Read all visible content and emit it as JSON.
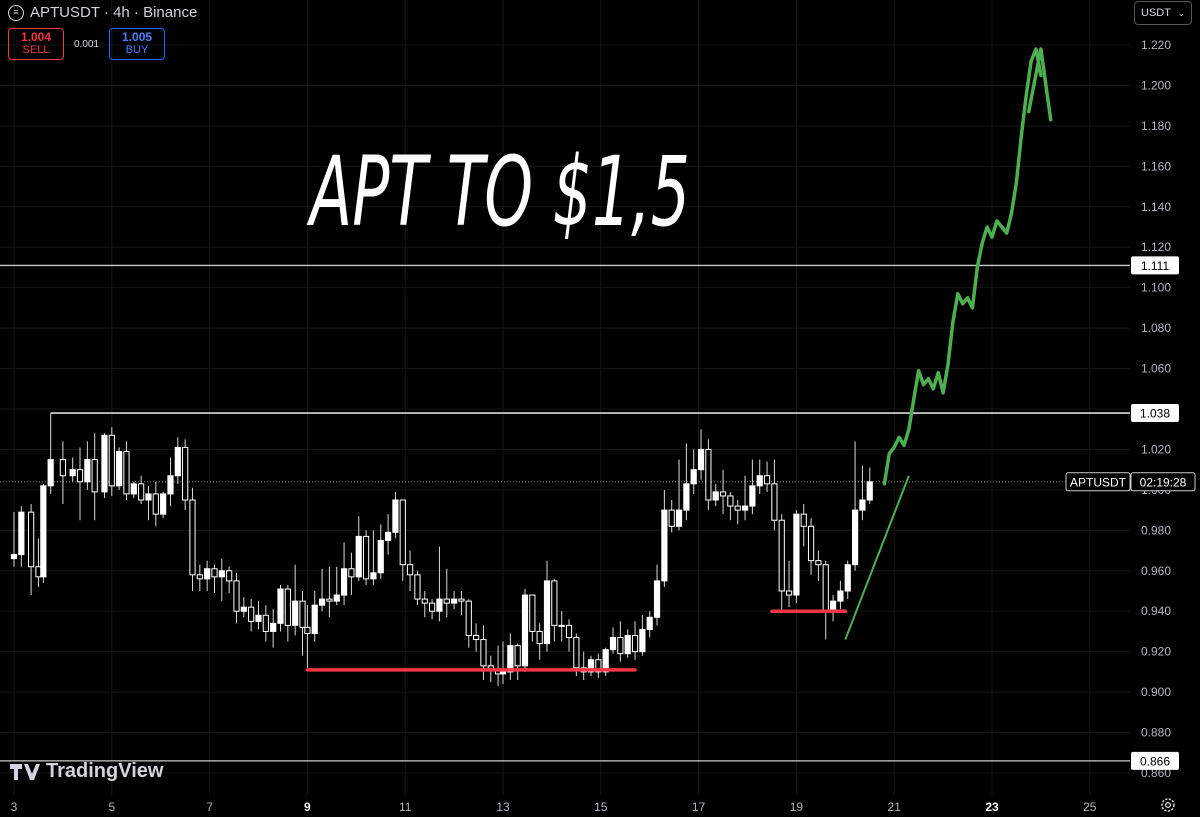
{
  "header": {
    "title": "APTUSDT · 4h · Binance",
    "symbol_icon": "exchange-icon"
  },
  "trade": {
    "sell_price": "1.004",
    "sell_label": "SELL",
    "spread": "0.001",
    "buy_price": "1.005",
    "buy_label": "BUY"
  },
  "currency": {
    "value": "USDT"
  },
  "logo": {
    "text": "TradingView"
  },
  "chart_data": {
    "type": "candlestick",
    "title": "APT TO $1,5",
    "y_axis": {
      "ticks": [
        "1.220",
        "1.200",
        "1.180",
        "1.160",
        "1.140",
        "1.120",
        "1.100",
        "1.080",
        "1.060",
        "1.040",
        "1.020",
        "1.000",
        "0.980",
        "0.960",
        "0.940",
        "0.920",
        "0.900",
        "0.880",
        "0.860"
      ],
      "ylim": [
        0.855,
        1.228
      ]
    },
    "x_axis": {
      "ticks": [
        "3",
        "5",
        "7",
        "9",
        "11",
        "13",
        "15",
        "17",
        "19",
        "21",
        "23",
        "25"
      ],
      "bold_ticks": [
        "9",
        "23"
      ]
    },
    "horizontal_levels": [
      {
        "value": 1.111,
        "label": "1.111",
        "color": "#cccccc"
      },
      {
        "value": 1.038,
        "label": "1.038",
        "color": "#ffffff"
      },
      {
        "value": 0.866,
        "label": "0.866",
        "color": "#cccccc"
      }
    ],
    "current_price": {
      "symbol": "APTUSDT",
      "countdown": "02:19:28",
      "value": 1.004
    },
    "support_lines": [
      {
        "from_day": 9,
        "to_day": 15.7,
        "value": 0.911,
        "color": "#f23645"
      },
      {
        "from_day": 18.5,
        "to_day": 20.0,
        "value": 0.94,
        "color": "#f23645"
      }
    ],
    "trend_line": {
      "from": [
        20.0,
        0.926
      ],
      "to": [
        21.3,
        1.007
      ],
      "color": "#4caf50"
    },
    "projection_path": [
      [
        20.8,
        1.003
      ],
      [
        20.9,
        1.018
      ],
      [
        21.0,
        1.021
      ],
      [
        21.1,
        1.026
      ],
      [
        21.2,
        1.022
      ],
      [
        21.3,
        1.03
      ],
      [
        21.4,
        1.045
      ],
      [
        21.5,
        1.059
      ],
      [
        21.6,
        1.052
      ],
      [
        21.7,
        1.055
      ],
      [
        21.8,
        1.05
      ],
      [
        21.9,
        1.058
      ],
      [
        22.0,
        1.048
      ],
      [
        22.1,
        1.062
      ],
      [
        22.2,
        1.083
      ],
      [
        22.3,
        1.097
      ],
      [
        22.4,
        1.092
      ],
      [
        22.5,
        1.095
      ],
      [
        22.6,
        1.09
      ],
      [
        22.7,
        1.11
      ],
      [
        22.8,
        1.122
      ],
      [
        22.9,
        1.13
      ],
      [
        23.0,
        1.125
      ],
      [
        23.1,
        1.133
      ],
      [
        23.2,
        1.13
      ],
      [
        23.3,
        1.127
      ],
      [
        23.4,
        1.137
      ],
      [
        23.5,
        1.152
      ],
      [
        23.6,
        1.175
      ],
      [
        23.7,
        1.195
      ],
      [
        23.8,
        1.212
      ],
      [
        23.9,
        1.218
      ],
      [
        24.0,
        1.205
      ]
    ],
    "projection_arrowhead": [
      [
        23.75,
        1.187
      ],
      [
        24.0,
        1.218
      ],
      [
        24.2,
        1.183
      ]
    ],
    "candles": [
      [
        3.0,
        0.966,
        0.968,
        0.962,
        0.989
      ],
      [
        3.15,
        0.968,
        0.989,
        0.962,
        0.992
      ],
      [
        3.35,
        0.989,
        0.962,
        0.948,
        0.993
      ],
      [
        3.5,
        0.962,
        0.957,
        0.952,
        0.976
      ],
      [
        3.6,
        0.957,
        1.002,
        0.954,
        1.003
      ],
      [
        3.75,
        1.002,
        1.015,
        0.998,
        1.038
      ],
      [
        4.0,
        1.015,
        1.007,
        0.993,
        1.024
      ],
      [
        4.2,
        1.007,
        1.01,
        1.004,
        1.016
      ],
      [
        4.35,
        1.01,
        1.004,
        0.985,
        1.021
      ],
      [
        4.5,
        1.004,
        1.015,
        1.0,
        1.024
      ],
      [
        4.65,
        1.015,
        0.999,
        0.985,
        1.028
      ],
      [
        4.85,
        0.999,
        1.027,
        0.996,
        1.028
      ],
      [
        5.0,
        1.027,
        1.002,
        0.997,
        1.031
      ],
      [
        5.15,
        1.002,
        1.019,
        1.0,
        1.021
      ],
      [
        5.3,
        1.019,
        0.998,
        0.995,
        1.024
      ],
      [
        5.45,
        0.998,
        1.003,
        0.996,
        1.004
      ],
      [
        5.6,
        1.003,
        0.995,
        0.993,
        1.007
      ],
      [
        5.75,
        0.995,
        0.998,
        0.985,
        1.002
      ],
      [
        5.9,
        0.998,
        0.988,
        0.982,
        1.004
      ],
      [
        6.05,
        0.988,
        0.998,
        0.986,
        0.999
      ],
      [
        6.2,
        0.998,
        1.007,
        0.992,
        1.016
      ],
      [
        6.35,
        1.007,
        1.021,
        1.003,
        1.026
      ],
      [
        6.5,
        1.021,
        0.995,
        0.99,
        1.025
      ],
      [
        6.65,
        0.995,
        0.958,
        0.95,
        1.001
      ],
      [
        6.8,
        0.958,
        0.956,
        0.95,
        0.963
      ],
      [
        6.95,
        0.956,
        0.961,
        0.95,
        0.965
      ],
      [
        7.1,
        0.961,
        0.957,
        0.949,
        0.963
      ],
      [
        7.25,
        0.957,
        0.96,
        0.945,
        0.966
      ],
      [
        7.4,
        0.96,
        0.955,
        0.949,
        0.962
      ],
      [
        7.55,
        0.955,
        0.94,
        0.934,
        0.959
      ],
      [
        7.7,
        0.94,
        0.942,
        0.937,
        0.947
      ],
      [
        7.85,
        0.942,
        0.935,
        0.93,
        0.946
      ],
      [
        8.0,
        0.935,
        0.938,
        0.931,
        0.945
      ],
      [
        8.15,
        0.938,
        0.93,
        0.925,
        0.943
      ],
      [
        8.3,
        0.93,
        0.934,
        0.922,
        0.941
      ],
      [
        8.45,
        0.934,
        0.951,
        0.93,
        0.953
      ],
      [
        8.6,
        0.951,
        0.933,
        0.925,
        0.953
      ],
      [
        8.75,
        0.933,
        0.945,
        0.928,
        0.963
      ],
      [
        8.9,
        0.945,
        0.932,
        0.918,
        0.95
      ],
      [
        9.0,
        0.932,
        0.929,
        0.912,
        0.943
      ],
      [
        9.15,
        0.929,
        0.943,
        0.925,
        0.95
      ],
      [
        9.3,
        0.943,
        0.946,
        0.94,
        0.961
      ],
      [
        9.45,
        0.946,
        0.945,
        0.937,
        0.962
      ],
      [
        9.6,
        0.945,
        0.948,
        0.943,
        0.962
      ],
      [
        9.75,
        0.948,
        0.961,
        0.943,
        0.974
      ],
      [
        9.9,
        0.961,
        0.957,
        0.948,
        0.969
      ],
      [
        10.05,
        0.957,
        0.977,
        0.955,
        0.987
      ],
      [
        10.2,
        0.977,
        0.956,
        0.953,
        0.98
      ],
      [
        10.35,
        0.956,
        0.959,
        0.953,
        0.98
      ],
      [
        10.5,
        0.959,
        0.975,
        0.956,
        0.983
      ],
      [
        10.65,
        0.975,
        0.979,
        0.968,
        0.988
      ],
      [
        10.8,
        0.979,
        0.995,
        0.976,
        0.999
      ],
      [
        10.95,
        0.995,
        0.963,
        0.955,
        0.995
      ],
      [
        11.1,
        0.963,
        0.958,
        0.95,
        0.97
      ],
      [
        11.25,
        0.958,
        0.946,
        0.943,
        0.96
      ],
      [
        11.4,
        0.946,
        0.944,
        0.937,
        0.95
      ],
      [
        11.55,
        0.944,
        0.94,
        0.936,
        0.946
      ],
      [
        11.7,
        0.94,
        0.946,
        0.935,
        0.972
      ],
      [
        11.85,
        0.946,
        0.944,
        0.937,
        0.961
      ],
      [
        12.0,
        0.944,
        0.946,
        0.941,
        0.95
      ],
      [
        12.15,
        0.946,
        0.945,
        0.938,
        0.95
      ],
      [
        12.3,
        0.945,
        0.928,
        0.922,
        0.946
      ],
      [
        12.45,
        0.928,
        0.926,
        0.92,
        0.934
      ],
      [
        12.6,
        0.926,
        0.913,
        0.906,
        0.933
      ],
      [
        12.75,
        0.913,
        0.911,
        0.905,
        0.918
      ],
      [
        12.9,
        0.911,
        0.909,
        0.903,
        0.923
      ],
      [
        13.0,
        0.909,
        0.91,
        0.904,
        0.925
      ],
      [
        13.15,
        0.91,
        0.923,
        0.906,
        0.929
      ],
      [
        13.3,
        0.923,
        0.913,
        0.906,
        0.924
      ],
      [
        13.45,
        0.913,
        0.948,
        0.91,
        0.951
      ],
      [
        13.6,
        0.948,
        0.93,
        0.925,
        0.948
      ],
      [
        13.75,
        0.93,
        0.924,
        0.916,
        0.934
      ],
      [
        13.9,
        0.924,
        0.955,
        0.92,
        0.965
      ],
      [
        14.05,
        0.955,
        0.933,
        0.925,
        0.956
      ],
      [
        14.2,
        0.933,
        0.933,
        0.925,
        0.94
      ],
      [
        14.35,
        0.933,
        0.927,
        0.92,
        0.936
      ],
      [
        14.5,
        0.927,
        0.912,
        0.908,
        0.929
      ],
      [
        14.65,
        0.912,
        0.91,
        0.906,
        0.92
      ],
      [
        14.8,
        0.91,
        0.916,
        0.908,
        0.918
      ],
      [
        14.95,
        0.916,
        0.91,
        0.907,
        0.919
      ],
      [
        15.1,
        0.91,
        0.921,
        0.908,
        0.922
      ],
      [
        15.25,
        0.921,
        0.927,
        0.919,
        0.932
      ],
      [
        15.4,
        0.927,
        0.919,
        0.915,
        0.935
      ],
      [
        15.55,
        0.919,
        0.928,
        0.917,
        0.931
      ],
      [
        15.7,
        0.928,
        0.92,
        0.916,
        0.935
      ],
      [
        15.85,
        0.92,
        0.931,
        0.918,
        0.938
      ],
      [
        16.0,
        0.931,
        0.937,
        0.927,
        0.94
      ],
      [
        16.15,
        0.937,
        0.955,
        0.933,
        0.963
      ],
      [
        16.3,
        0.955,
        0.99,
        0.952,
        1.0
      ],
      [
        16.45,
        0.99,
        0.982,
        0.979,
        0.995
      ],
      [
        16.6,
        0.982,
        0.99,
        0.98,
        1.015
      ],
      [
        16.75,
        0.99,
        1.003,
        0.985,
        1.023
      ],
      [
        16.9,
        1.003,
        1.01,
        0.998,
        1.02
      ],
      [
        17.05,
        1.01,
        1.02,
        1.005,
        1.03
      ],
      [
        17.2,
        1.02,
        0.995,
        0.99,
        1.025
      ],
      [
        17.35,
        0.995,
        0.999,
        0.992,
        1.003
      ],
      [
        17.5,
        0.999,
        0.997,
        0.988,
        1.01
      ],
      [
        17.65,
        0.997,
        0.992,
        0.985,
        0.999
      ],
      [
        17.8,
        0.992,
        0.99,
        0.983,
        0.995
      ],
      [
        17.95,
        0.99,
        0.992,
        0.985,
        1.007
      ],
      [
        18.1,
        0.992,
        1.002,
        0.988,
        1.015
      ],
      [
        18.25,
        1.002,
        1.007,
        0.998,
        1.015
      ],
      [
        18.4,
        1.007,
        1.003,
        0.999,
        1.014
      ],
      [
        18.55,
        1.003,
        0.985,
        0.98,
        1.015
      ],
      [
        18.7,
        0.985,
        0.95,
        0.94,
        0.988
      ],
      [
        18.85,
        0.95,
        0.948,
        0.942,
        0.965
      ],
      [
        19.0,
        0.948,
        0.988,
        0.944,
        0.99
      ],
      [
        19.15,
        0.988,
        0.982,
        0.972,
        0.993
      ],
      [
        19.3,
        0.982,
        0.965,
        0.958,
        0.986
      ],
      [
        19.45,
        0.965,
        0.963,
        0.955,
        0.97
      ],
      [
        19.6,
        0.963,
        0.94,
        0.926,
        0.965
      ],
      [
        19.75,
        0.94,
        0.945,
        0.935,
        0.948
      ],
      [
        19.9,
        0.945,
        0.95,
        0.941,
        0.955
      ],
      [
        20.05,
        0.95,
        0.963,
        0.946,
        0.965
      ],
      [
        20.2,
        0.963,
        0.99,
        0.96,
        1.024
      ],
      [
        20.35,
        0.99,
        0.995,
        0.985,
        1.012
      ],
      [
        20.5,
        0.995,
        1.004,
        0.993,
        1.011
      ]
    ]
  }
}
